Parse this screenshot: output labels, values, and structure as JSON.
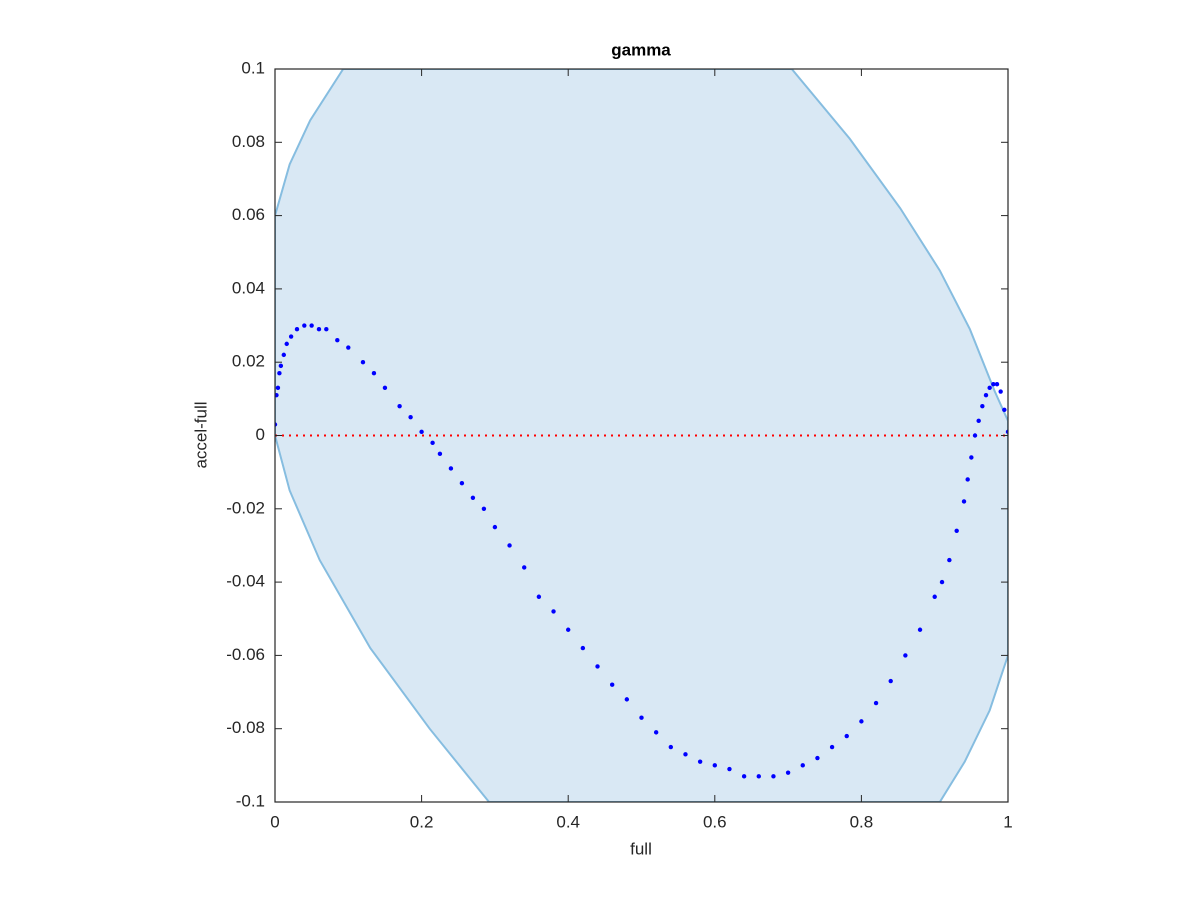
{
  "chart_data": {
    "type": "scatter",
    "title": "gamma",
    "x_label": "full",
    "y_label": "accel-full",
    "xlim": [
      0,
      1
    ],
    "ylim": [
      -0.1,
      0.1
    ],
    "xticks": [
      0,
      0.2,
      0.4,
      0.6,
      0.8,
      1
    ],
    "yticks": [
      -0.1,
      -0.08,
      -0.06,
      -0.04,
      -0.02,
      0,
      0.02,
      0.04,
      0.06,
      0.08,
      0.1
    ],
    "region": {
      "fill": "#d9e8f4",
      "edge": "#86bde0",
      "x": [
        0,
        0.02,
        0.048,
        0.093,
        0.705,
        0.784,
        0.853,
        0.907,
        0.948,
        0.982,
        1,
        1,
        0.975,
        0.941,
        0.907,
        0.292,
        0.211,
        0.13,
        0.061,
        0.02,
        0
      ],
      "y": [
        0.06,
        0.074,
        0.086,
        0.1,
        0.1,
        0.081,
        0.062,
        0.045,
        0.029,
        0.012,
        0.004,
        -0.06,
        -0.075,
        -0.089,
        -0.1,
        -0.1,
        -0.08,
        -0.058,
        -0.034,
        -0.015,
        0
      ]
    },
    "reference_line": {
      "y": 0,
      "color": "#ff0000"
    },
    "points": {
      "color": "#0000ff",
      "x": [
        0,
        0.002,
        0.004,
        0.006,
        0.008,
        0.012,
        0.016,
        0.022,
        0.03,
        0.04,
        0.05,
        0.06,
        0.07,
        0.085,
        0.1,
        0.12,
        0.135,
        0.15,
        0.17,
        0.185,
        0.2,
        0.215,
        0.225,
        0.24,
        0.255,
        0.27,
        0.285,
        0.3,
        0.32,
        0.34,
        0.36,
        0.38,
        0.4,
        0.42,
        0.44,
        0.46,
        0.48,
        0.5,
        0.52,
        0.54,
        0.56,
        0.58,
        0.6,
        0.62,
        0.64,
        0.66,
        0.68,
        0.7,
        0.72,
        0.74,
        0.76,
        0.78,
        0.8,
        0.82,
        0.84,
        0.86,
        0.88,
        0.9,
        0.91,
        0.92,
        0.93,
        0.94,
        0.945,
        0.95,
        0.955,
        0.96,
        0.965,
        0.97,
        0.975,
        0.98,
        0.985,
        0.99,
        0.995,
        1
      ],
      "y": [
        0.003,
        0.011,
        0.013,
        0.017,
        0.019,
        0.022,
        0.025,
        0.027,
        0.029,
        0.03,
        0.03,
        0.029,
        0.029,
        0.026,
        0.024,
        0.02,
        0.017,
        0.013,
        0.008,
        0.005,
        0.001,
        -0.002,
        -0.005,
        -0.009,
        -0.013,
        -0.017,
        -0.02,
        -0.025,
        -0.03,
        -0.036,
        -0.044,
        -0.048,
        -0.053,
        -0.058,
        -0.063,
        -0.068,
        -0.072,
        -0.077,
        -0.081,
        -0.085,
        -0.087,
        -0.089,
        -0.09,
        -0.091,
        -0.093,
        -0.093,
        -0.093,
        -0.092,
        -0.09,
        -0.088,
        -0.085,
        -0.082,
        -0.078,
        -0.073,
        -0.067,
        -0.06,
        -0.053,
        -0.044,
        -0.04,
        -0.034,
        -0.026,
        -0.018,
        -0.012,
        -0.006,
        0,
        0.004,
        0.008,
        0.011,
        0.013,
        0.014,
        0.014,
        0.012,
        0.007,
        0.001
      ]
    }
  }
}
